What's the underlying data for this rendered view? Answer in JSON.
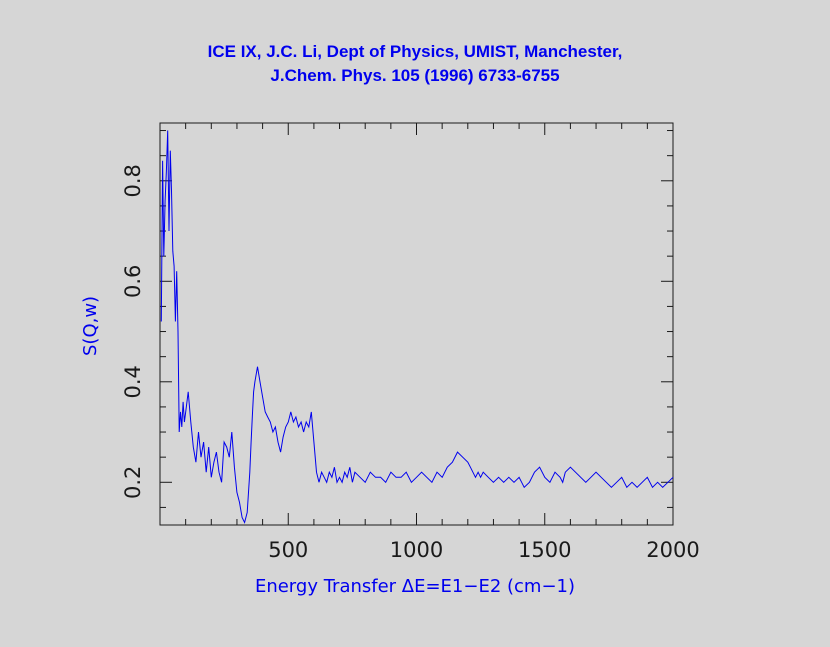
{
  "chart_data": {
    "type": "line",
    "title": "ICE IX, J.C. Li, Dept of Physics, UMIST, Manchester,",
    "subtitle": "J.Chem. Phys. 105 (1996) 6733-6755",
    "xlabel": "Energy Transfer ΔE=E1−E2 (cm−1)",
    "ylabel": "S(Q,w)",
    "xlim": [
      0,
      2000
    ],
    "ylim": [
      0.115,
      0.915
    ],
    "xticks": [
      500,
      1000,
      1500,
      2000
    ],
    "yticks": [
      0.2,
      0.4,
      0.6,
      0.8
    ],
    "ytick_labels": [
      "0.2",
      "0.4",
      "0.6",
      "0.8"
    ],
    "grid": false,
    "series_color": "#0000ee",
    "background": "#d6d6d6",
    "series": [
      {
        "x": [
          5,
          10,
          15,
          20,
          25,
          30,
          35,
          40,
          45,
          50,
          55,
          60,
          65,
          70,
          75,
          80,
          85,
          90,
          95,
          100,
          110,
          120,
          130,
          140,
          150,
          160,
          170,
          180,
          190,
          200,
          210,
          220,
          230,
          240,
          250,
          260,
          270,
          280,
          290,
          300,
          310,
          320,
          330,
          340,
          350,
          355,
          360,
          365,
          370,
          380,
          390,
          400,
          410,
          420,
          430,
          440,
          450,
          460,
          470,
          480,
          490,
          500,
          510,
          520,
          530,
          540,
          550,
          560,
          570,
          580,
          590,
          600,
          610,
          620,
          630,
          640,
          650,
          660,
          670,
          680,
          690,
          700,
          710,
          720,
          730,
          740,
          750,
          760,
          780,
          800,
          820,
          840,
          860,
          880,
          900,
          920,
          940,
          960,
          980,
          1000,
          1020,
          1040,
          1060,
          1080,
          1100,
          1120,
          1140,
          1160,
          1180,
          1200,
          1210,
          1220,
          1230,
          1240,
          1250,
          1260,
          1280,
          1300,
          1320,
          1340,
          1360,
          1380,
          1400,
          1420,
          1440,
          1460,
          1480,
          1500,
          1520,
          1540,
          1560,
          1570,
          1580,
          1600,
          1620,
          1640,
          1660,
          1680,
          1700,
          1720,
          1740,
          1760,
          1780,
          1800,
          1820,
          1840,
          1860,
          1880,
          1900,
          1920,
          1940,
          1960,
          1980,
          2000
        ],
        "y": [
          0.52,
          0.84,
          0.65,
          0.76,
          0.82,
          0.9,
          0.7,
          0.86,
          0.78,
          0.66,
          0.63,
          0.52,
          0.62,
          0.5,
          0.3,
          0.34,
          0.31,
          0.36,
          0.32,
          0.34,
          0.38,
          0.32,
          0.27,
          0.24,
          0.3,
          0.25,
          0.28,
          0.22,
          0.27,
          0.21,
          0.24,
          0.26,
          0.22,
          0.2,
          0.28,
          0.27,
          0.25,
          0.3,
          0.23,
          0.18,
          0.16,
          0.13,
          0.12,
          0.14,
          0.22,
          0.28,
          0.33,
          0.38,
          0.4,
          0.43,
          0.4,
          0.37,
          0.34,
          0.33,
          0.32,
          0.3,
          0.31,
          0.28,
          0.26,
          0.29,
          0.31,
          0.32,
          0.34,
          0.32,
          0.33,
          0.31,
          0.32,
          0.3,
          0.32,
          0.31,
          0.34,
          0.28,
          0.22,
          0.2,
          0.22,
          0.21,
          0.2,
          0.22,
          0.21,
          0.23,
          0.2,
          0.21,
          0.2,
          0.22,
          0.21,
          0.23,
          0.2,
          0.22,
          0.21,
          0.2,
          0.22,
          0.21,
          0.21,
          0.2,
          0.22,
          0.21,
          0.21,
          0.22,
          0.2,
          0.21,
          0.22,
          0.21,
          0.2,
          0.22,
          0.21,
          0.23,
          0.24,
          0.26,
          0.25,
          0.24,
          0.23,
          0.22,
          0.21,
          0.22,
          0.21,
          0.22,
          0.21,
          0.2,
          0.21,
          0.2,
          0.21,
          0.2,
          0.21,
          0.19,
          0.2,
          0.22,
          0.23,
          0.21,
          0.2,
          0.22,
          0.21,
          0.2,
          0.22,
          0.23,
          0.22,
          0.21,
          0.2,
          0.21,
          0.22,
          0.21,
          0.2,
          0.19,
          0.2,
          0.21,
          0.19,
          0.2,
          0.19,
          0.2,
          0.21,
          0.19,
          0.2,
          0.19,
          0.2,
          0.21
        ]
      }
    ]
  }
}
